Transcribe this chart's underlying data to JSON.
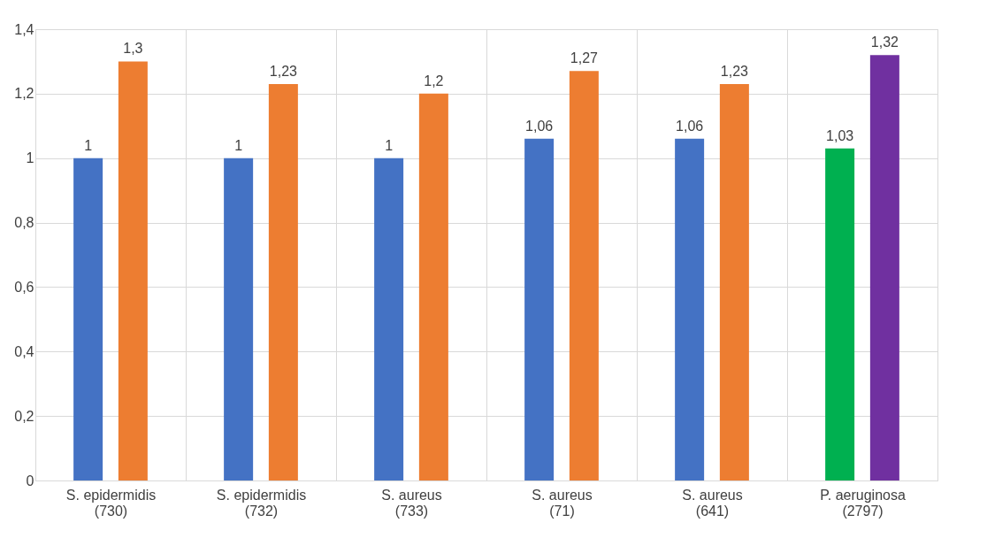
{
  "chart_data": {
    "type": "bar",
    "categories": [
      "S. epidermidis\n(730)",
      "S. epidermidis\n(732)",
      "S. aureus\n(733)",
      "S. aureus\n(71)",
      "S. aureus\n(641)",
      "P. aeruginosa\n(2797)"
    ],
    "series": [
      {
        "colors": [
          "#4472c4",
          "#4472c4",
          "#4472c4",
          "#4472c4",
          "#4472c4",
          "#00b050"
        ],
        "values": [
          1,
          1,
          1,
          1.06,
          1.06,
          1.03
        ],
        "value_labels": [
          "1",
          "1",
          "1",
          "1,06",
          "1,06",
          "1,03"
        ]
      },
      {
        "colors": [
          "#ed7d31",
          "#ed7d31",
          "#ed7d31",
          "#ed7d31",
          "#ed7d31",
          "#7030a0"
        ],
        "values": [
          1.3,
          1.23,
          1.2,
          1.27,
          1.23,
          1.32
        ],
        "value_labels": [
          "1,3",
          "1,23",
          "1,2",
          "1,27",
          "1,23",
          "1,32"
        ]
      }
    ],
    "ylim": [
      0,
      1.4
    ],
    "yticks": [
      {
        "value": 0,
        "label": "0"
      },
      {
        "value": 0.2,
        "label": "0,2"
      },
      {
        "value": 0.4,
        "label": "0,4"
      },
      {
        "value": 0.6,
        "label": "0,6"
      },
      {
        "value": 0.8,
        "label": "0,8"
      },
      {
        "value": 1,
        "label": "1"
      },
      {
        "value": 1.2,
        "label": "1,2"
      },
      {
        "value": 1.4,
        "label": "1,4"
      }
    ],
    "grid": true
  }
}
